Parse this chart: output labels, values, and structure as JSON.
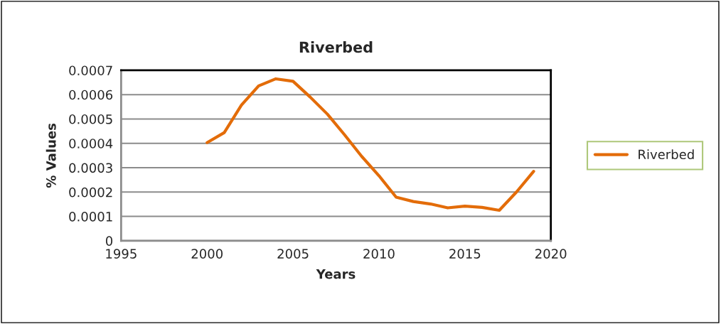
{
  "chart_data": {
    "type": "line",
    "title": "Riverbed",
    "xlabel": "Years",
    "ylabel": "% Values",
    "x": [
      2000,
      2001,
      2002,
      2003,
      2004,
      2005,
      2006,
      2007,
      2008,
      2009,
      2010,
      2011,
      2012,
      2013,
      2014,
      2015,
      2016,
      2017,
      2018,
      2019
    ],
    "series": [
      {
        "name": "Riverbed",
        "color": "#e36c09",
        "values": [
          0.000403,
          0.000444,
          0.000557,
          0.000636,
          0.000665,
          0.000655,
          0.00059,
          0.00052,
          0.000435,
          0.000346,
          0.000267,
          0.000179,
          0.000161,
          0.000151,
          0.000135,
          0.000142,
          0.000137,
          0.000125,
          0.0002,
          0.000285
        ]
      }
    ],
    "xlim": [
      1995,
      2020
    ],
    "xticks": [
      1995,
      2000,
      2005,
      2010,
      2015,
      2020
    ],
    "ylim": [
      0,
      0.0007
    ],
    "yticks": [
      {
        "value": 0,
        "label": "0"
      },
      0.0001,
      0.0002,
      0.0003,
      0.0004,
      0.0005,
      0.0006,
      0.0007
    ],
    "grid": "y",
    "legend": "right",
    "marker": "none",
    "line_style": "solid"
  }
}
